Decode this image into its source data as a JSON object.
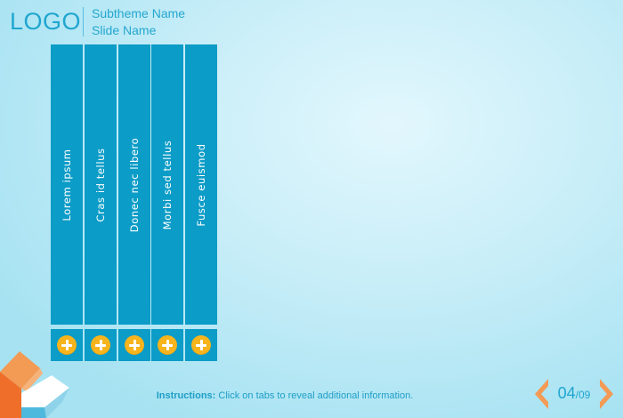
{
  "header": {
    "logo": "LOGO",
    "subtheme": "Subtheme Name",
    "slide_name": "Slide Name"
  },
  "tabs": [
    {
      "label": "Lorem ipsum"
    },
    {
      "label": "Cras id tellus"
    },
    {
      "label": "Donec nec libero"
    },
    {
      "label": "Morbi sed tellus"
    },
    {
      "label": "Fusce euismod"
    }
  ],
  "instructions": {
    "lead": "Instructions:",
    "text": " Click on tabs to reveal additional information."
  },
  "pager": {
    "current": "04",
    "total": "/09"
  },
  "icons": {
    "tab_expand": "plus-icon",
    "prev": "chevron-left-icon",
    "next": "chevron-right-icon",
    "decoration": "geometric-corner-icon"
  },
  "colors": {
    "accent": "#0b9cc7",
    "brand_text": "#20a6cf",
    "button": "#f7b41c",
    "nav": "#f39a55"
  }
}
